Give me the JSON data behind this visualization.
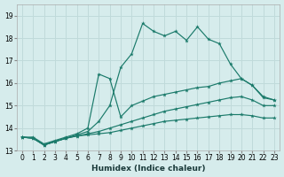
{
  "xlabel": "Humidex (Indice chaleur)",
  "background_color": "#d6ecec",
  "grid_color": "#c0dada",
  "line_color": "#1a7a6a",
  "xlim": [
    -0.5,
    23.5
  ],
  "ylim": [
    13.0,
    19.5
  ],
  "yticks": [
    13,
    14,
    15,
    16,
    17,
    18,
    19
  ],
  "xticks": [
    0,
    1,
    2,
    3,
    4,
    5,
    6,
    7,
    8,
    9,
    10,
    11,
    12,
    13,
    14,
    15,
    16,
    17,
    18,
    19,
    20,
    21,
    22,
    23
  ],
  "curve_main_x": [
    0,
    1,
    2,
    3,
    4,
    5,
    6,
    7,
    8,
    9,
    10,
    11,
    12,
    13,
    14,
    15,
    16,
    17,
    18,
    19,
    20,
    21,
    22,
    23
  ],
  "curve_main_y": [
    13.6,
    13.55,
    13.25,
    13.4,
    13.55,
    13.7,
    13.85,
    14.3,
    15.0,
    16.7,
    17.3,
    18.65,
    18.3,
    18.1,
    18.3,
    17.9,
    18.5,
    17.95,
    17.75,
    16.85,
    16.2,
    15.9,
    15.4,
    15.25
  ],
  "curve_hi_x": [
    0,
    1,
    2,
    3,
    4,
    5,
    6,
    7,
    8,
    9,
    10,
    11,
    12,
    13,
    14,
    15,
    16,
    17,
    18,
    19,
    20,
    21,
    22,
    23
  ],
  "curve_hi_y": [
    13.6,
    13.6,
    13.3,
    13.45,
    13.6,
    13.75,
    14.0,
    16.4,
    16.2,
    14.5,
    15.0,
    15.2,
    15.4,
    15.5,
    15.6,
    15.7,
    15.8,
    15.85,
    16.0,
    16.1,
    16.2,
    15.9,
    15.35,
    15.25
  ],
  "curve_mid_x": [
    0,
    1,
    2,
    3,
    4,
    5,
    6,
    7,
    8,
    9,
    10,
    11,
    12,
    13,
    14,
    15,
    16,
    17,
    18,
    19,
    20,
    21,
    22,
    23
  ],
  "curve_mid_y": [
    13.6,
    13.55,
    13.25,
    13.4,
    13.55,
    13.65,
    13.75,
    13.85,
    14.0,
    14.15,
    14.3,
    14.45,
    14.6,
    14.75,
    14.85,
    14.95,
    15.05,
    15.15,
    15.25,
    15.35,
    15.4,
    15.25,
    15.0,
    15.0
  ],
  "curve_lo_x": [
    0,
    1,
    2,
    3,
    4,
    5,
    6,
    7,
    8,
    9,
    10,
    11,
    12,
    13,
    14,
    15,
    16,
    17,
    18,
    19,
    20,
    21,
    22,
    23
  ],
  "curve_lo_y": [
    13.6,
    13.55,
    13.25,
    13.4,
    13.55,
    13.65,
    13.7,
    13.75,
    13.8,
    13.9,
    14.0,
    14.1,
    14.2,
    14.3,
    14.35,
    14.4,
    14.45,
    14.5,
    14.55,
    14.6,
    14.6,
    14.55,
    14.45,
    14.45
  ]
}
